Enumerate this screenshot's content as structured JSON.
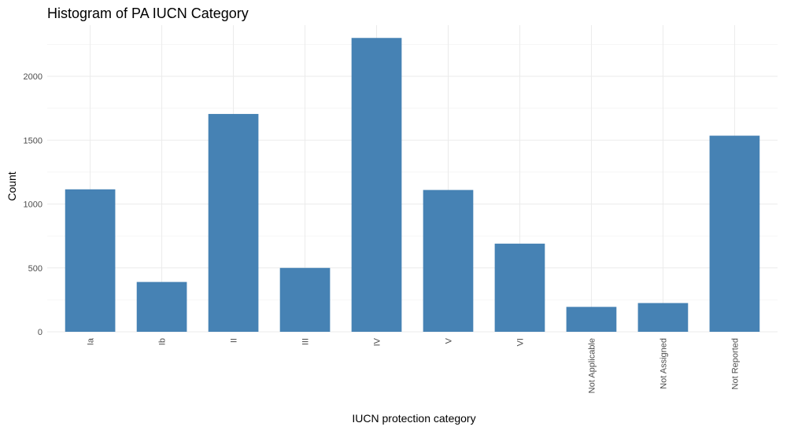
{
  "chart_data": {
    "type": "bar",
    "title": "Histogram of PA IUCN Category",
    "xlabel": "IUCN protection category",
    "ylabel": "Count",
    "categories": [
      "Ia",
      "Ib",
      "II",
      "III",
      "IV",
      "V",
      "VI",
      "Not Applicable",
      "Not Assigned",
      "Not Reported"
    ],
    "values": [
      1115,
      390,
      1705,
      500,
      2300,
      1110,
      690,
      195,
      225,
      1535
    ],
    "ylim": [
      0,
      2400
    ],
    "yticks": [
      0,
      500,
      1000,
      1500,
      2000
    ],
    "yticks_display": [
      "0",
      "500",
      "1000",
      "1500",
      "2000"
    ],
    "grid": true,
    "legend": "none",
    "bar_color": "#4682B4"
  }
}
